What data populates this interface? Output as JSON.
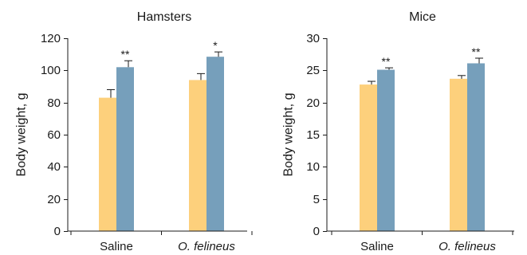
{
  "chart_data": [
    {
      "type": "bar",
      "title": "Hamsters",
      "ylabel": "Body weight, g",
      "xlabel": "",
      "ylim": [
        0,
        120
      ],
      "yticks": [
        0,
        20,
        40,
        60,
        80,
        100,
        120
      ],
      "categories": [
        "Saline",
        "O. felineus"
      ],
      "category_italic": [
        false,
        true
      ],
      "grid": false,
      "legend": "none",
      "series": [
        {
          "color": "#fdd07c",
          "values": [
            83,
            94
          ],
          "errors": [
            5,
            4
          ],
          "significance": [
            "",
            ""
          ]
        },
        {
          "color": "#769fbb",
          "values": [
            102,
            108.5
          ],
          "errors": [
            4,
            3
          ],
          "significance": [
            "**",
            "*"
          ]
        }
      ]
    },
    {
      "type": "bar",
      "title": "Mice",
      "ylabel": "Body weight, g",
      "xlabel": "",
      "ylim": [
        0,
        30
      ],
      "yticks": [
        0,
        5,
        10,
        15,
        20,
        25,
        30
      ],
      "categories": [
        "Saline",
        "O. felineus"
      ],
      "category_italic": [
        false,
        true
      ],
      "grid": false,
      "legend": "none",
      "series": [
        {
          "color": "#fdd07c",
          "values": [
            22.8,
            23.7
          ],
          "errors": [
            0.5,
            0.5
          ],
          "significance": [
            "",
            ""
          ]
        },
        {
          "color": "#769fbb",
          "values": [
            25.1,
            26.1
          ],
          "errors": [
            0.3,
            0.8
          ],
          "significance": [
            "**",
            "**"
          ]
        }
      ]
    }
  ]
}
